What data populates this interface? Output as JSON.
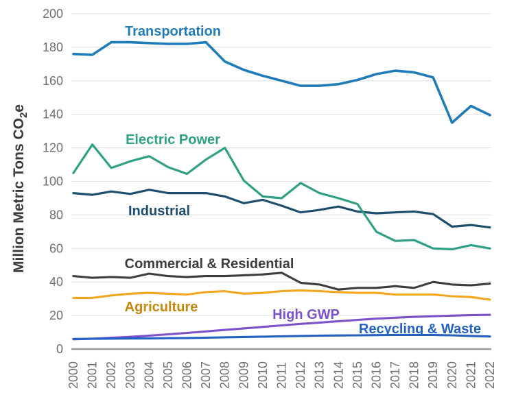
{
  "chart_data": {
    "type": "line",
    "title": "",
    "xlabel": "",
    "ylabel": "Million Metric Tons CO₂e",
    "ylabel_parts": {
      "prefix": "Million Metric Tons CO",
      "subscript": "2",
      "suffix": "e"
    },
    "x": [
      2000,
      2001,
      2002,
      2003,
      2004,
      2005,
      2006,
      2007,
      2008,
      2009,
      2010,
      2011,
      2012,
      2013,
      2014,
      2015,
      2016,
      2017,
      2018,
      2019,
      2020,
      2021,
      2022
    ],
    "ylim": [
      0,
      200
    ],
    "ytick_step": 20,
    "grid": true,
    "legend": "inline-labels",
    "series": [
      {
        "name": "Transportation",
        "color": "#1F7CB8",
        "values": [
          176,
          175.5,
          183,
          183,
          182.5,
          182,
          182,
          183,
          171.5,
          166.5,
          163,
          160,
          157,
          157,
          158,
          160.5,
          164,
          166,
          165,
          162,
          135,
          145,
          139.5
        ]
      },
      {
        "name": "Electric Power",
        "color": "#2FA084",
        "values": [
          105,
          122,
          108,
          112,
          115,
          108.5,
          104.5,
          113,
          120,
          100.5,
          91,
          90,
          99,
          93,
          90,
          86.5,
          70,
          64.5,
          65,
          60,
          59.5,
          62,
          60
        ]
      },
      {
        "name": "Industrial",
        "color": "#1D4F6C",
        "values": [
          93,
          92,
          94,
          92.5,
          95,
          93,
          93,
          93,
          91,
          87,
          89,
          85.5,
          81.5,
          83,
          85,
          82,
          81,
          81.5,
          82,
          80.5,
          73,
          74,
          72.5
        ]
      },
      {
        "name": "Commercial & Residential",
        "color": "#3D3D3D",
        "values": [
          43.5,
          42.5,
          43,
          42.5,
          45,
          43.5,
          43,
          43.5,
          43.5,
          44,
          44.5,
          45.5,
          39.5,
          38.5,
          35.5,
          36.5,
          36.5,
          37.5,
          36.5,
          40,
          38.5,
          38,
          39
        ]
      },
      {
        "name": "Agriculture",
        "color": "#F3A71E",
        "label_color": "#C4860D",
        "values": [
          30.5,
          30.5,
          32,
          33,
          33.5,
          33,
          32.5,
          34,
          34.5,
          33,
          33.5,
          34.5,
          35,
          34.5,
          34,
          33.5,
          33.5,
          32.5,
          32.5,
          32.5,
          31.5,
          31,
          29.5
        ]
      },
      {
        "name": "High GWP",
        "color": "#7B52C9",
        "values": [
          5.8,
          6.2,
          6.7,
          7.3,
          8.0,
          8.8,
          9.6,
          10.5,
          11.4,
          12.3,
          13.2,
          14.1,
          15.0,
          15.8,
          16.6,
          17.4,
          18.1,
          18.7,
          19.2,
          19.6,
          19.9,
          20.2,
          20.4
        ]
      },
      {
        "name": "Recycling & Waste",
        "color": "#2162C4",
        "values": [
          6.0,
          6.1,
          6.2,
          6.3,
          6.4,
          6.5,
          6.6,
          6.8,
          7.0,
          7.2,
          7.4,
          7.6,
          7.8,
          8.0,
          8.1,
          8.2,
          8.3,
          8.4,
          8.4,
          8.4,
          8.2,
          7.8,
          7.5
        ]
      }
    ]
  },
  "colors": {
    "background": "#FFFFFF",
    "grid": "#E2E2E2",
    "axis_line": "#9B9B9B",
    "tick_text": "#6F6F6F",
    "axis_title": "#3A3A3A"
  }
}
